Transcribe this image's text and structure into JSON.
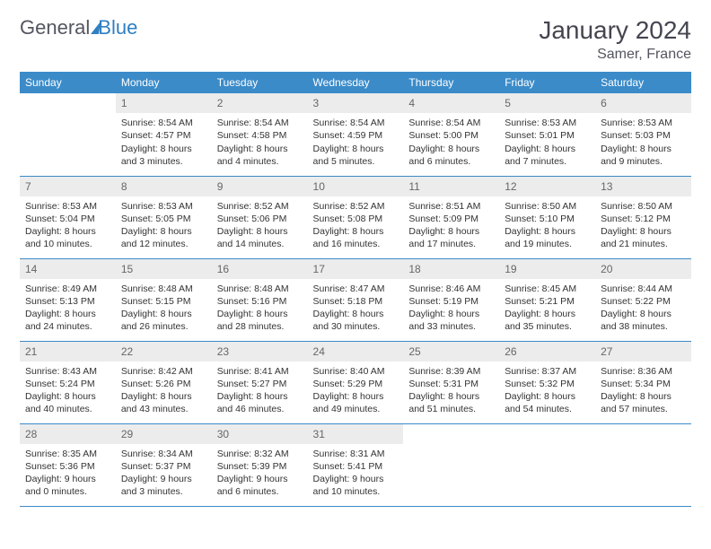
{
  "logo": {
    "part1": "General",
    "part2": "Blue"
  },
  "title": "January 2024",
  "location": "Samer, France",
  "colors": {
    "header_bg": "#3b8bc9",
    "header_text": "#ffffff",
    "daynum_bg": "#ececec",
    "daynum_text": "#666666",
    "body_text": "#333333",
    "rule": "#3b8bc9",
    "logo_gray": "#555560",
    "logo_blue": "#2f7fc2"
  },
  "weekdays": [
    "Sunday",
    "Monday",
    "Tuesday",
    "Wednesday",
    "Thursday",
    "Friday",
    "Saturday"
  ],
  "weeks": [
    [
      {
        "empty": true
      },
      {
        "n": "1",
        "sr": "8:54 AM",
        "ss": "4:57 PM",
        "dl": "8 hours and 3 minutes."
      },
      {
        "n": "2",
        "sr": "8:54 AM",
        "ss": "4:58 PM",
        "dl": "8 hours and 4 minutes."
      },
      {
        "n": "3",
        "sr": "8:54 AM",
        "ss": "4:59 PM",
        "dl": "8 hours and 5 minutes."
      },
      {
        "n": "4",
        "sr": "8:54 AM",
        "ss": "5:00 PM",
        "dl": "8 hours and 6 minutes."
      },
      {
        "n": "5",
        "sr": "8:53 AM",
        "ss": "5:01 PM",
        "dl": "8 hours and 7 minutes."
      },
      {
        "n": "6",
        "sr": "8:53 AM",
        "ss": "5:03 PM",
        "dl": "8 hours and 9 minutes."
      }
    ],
    [
      {
        "n": "7",
        "sr": "8:53 AM",
        "ss": "5:04 PM",
        "dl": "8 hours and 10 minutes."
      },
      {
        "n": "8",
        "sr": "8:53 AM",
        "ss": "5:05 PM",
        "dl": "8 hours and 12 minutes."
      },
      {
        "n": "9",
        "sr": "8:52 AM",
        "ss": "5:06 PM",
        "dl": "8 hours and 14 minutes."
      },
      {
        "n": "10",
        "sr": "8:52 AM",
        "ss": "5:08 PM",
        "dl": "8 hours and 16 minutes."
      },
      {
        "n": "11",
        "sr": "8:51 AM",
        "ss": "5:09 PM",
        "dl": "8 hours and 17 minutes."
      },
      {
        "n": "12",
        "sr": "8:50 AM",
        "ss": "5:10 PM",
        "dl": "8 hours and 19 minutes."
      },
      {
        "n": "13",
        "sr": "8:50 AM",
        "ss": "5:12 PM",
        "dl": "8 hours and 21 minutes."
      }
    ],
    [
      {
        "n": "14",
        "sr": "8:49 AM",
        "ss": "5:13 PM",
        "dl": "8 hours and 24 minutes."
      },
      {
        "n": "15",
        "sr": "8:48 AM",
        "ss": "5:15 PM",
        "dl": "8 hours and 26 minutes."
      },
      {
        "n": "16",
        "sr": "8:48 AM",
        "ss": "5:16 PM",
        "dl": "8 hours and 28 minutes."
      },
      {
        "n": "17",
        "sr": "8:47 AM",
        "ss": "5:18 PM",
        "dl": "8 hours and 30 minutes."
      },
      {
        "n": "18",
        "sr": "8:46 AM",
        "ss": "5:19 PM",
        "dl": "8 hours and 33 minutes."
      },
      {
        "n": "19",
        "sr": "8:45 AM",
        "ss": "5:21 PM",
        "dl": "8 hours and 35 minutes."
      },
      {
        "n": "20",
        "sr": "8:44 AM",
        "ss": "5:22 PM",
        "dl": "8 hours and 38 minutes."
      }
    ],
    [
      {
        "n": "21",
        "sr": "8:43 AM",
        "ss": "5:24 PM",
        "dl": "8 hours and 40 minutes."
      },
      {
        "n": "22",
        "sr": "8:42 AM",
        "ss": "5:26 PM",
        "dl": "8 hours and 43 minutes."
      },
      {
        "n": "23",
        "sr": "8:41 AM",
        "ss": "5:27 PM",
        "dl": "8 hours and 46 minutes."
      },
      {
        "n": "24",
        "sr": "8:40 AM",
        "ss": "5:29 PM",
        "dl": "8 hours and 49 minutes."
      },
      {
        "n": "25",
        "sr": "8:39 AM",
        "ss": "5:31 PM",
        "dl": "8 hours and 51 minutes."
      },
      {
        "n": "26",
        "sr": "8:37 AM",
        "ss": "5:32 PM",
        "dl": "8 hours and 54 minutes."
      },
      {
        "n": "27",
        "sr": "8:36 AM",
        "ss": "5:34 PM",
        "dl": "8 hours and 57 minutes."
      }
    ],
    [
      {
        "n": "28",
        "sr": "8:35 AM",
        "ss": "5:36 PM",
        "dl": "9 hours and 0 minutes."
      },
      {
        "n": "29",
        "sr": "8:34 AM",
        "ss": "5:37 PM",
        "dl": "9 hours and 3 minutes."
      },
      {
        "n": "30",
        "sr": "8:32 AM",
        "ss": "5:39 PM",
        "dl": "9 hours and 6 minutes."
      },
      {
        "n": "31",
        "sr": "8:31 AM",
        "ss": "5:41 PM",
        "dl": "9 hours and 10 minutes."
      },
      {
        "empty": true
      },
      {
        "empty": true
      },
      {
        "empty": true
      }
    ]
  ],
  "labels": {
    "sunrise": "Sunrise:",
    "sunset": "Sunset:",
    "daylight": "Daylight:"
  }
}
